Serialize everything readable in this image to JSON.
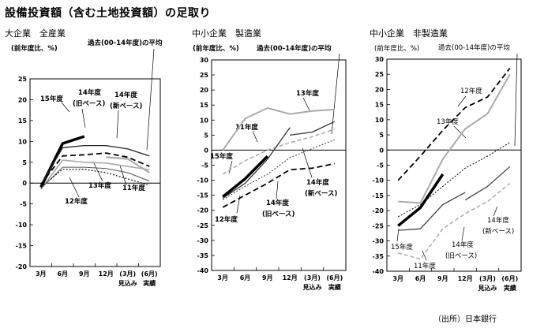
{
  "main_title": "設備投資額（含む土地投資額）の足取り",
  "source": "（出所）日本銀行",
  "chart_data": [
    {
      "type": "line",
      "title": "大企業　全産業",
      "ylabel": "(前年度比、%)",
      "ylim": [
        -20,
        25
      ],
      "yticks": [
        -20,
        -15,
        -10,
        -5,
        0,
        5,
        10,
        15,
        20,
        25
      ],
      "categories": [
        "3月",
        "6月",
        "9月",
        "12月",
        "(3月)",
        "(6月)"
      ],
      "sublabels": [
        "",
        "",
        "",
        "",
        "見込み",
        "実績"
      ],
      "series": [
        {
          "name": "15年度",
          "color": "#000000",
          "width": 3.5,
          "dash": "",
          "values": [
            -1,
            9.5,
            11.2,
            null,
            null,
            null
          ]
        },
        {
          "name": "14年度(旧ベース)",
          "color": "#222222",
          "width": 1.3,
          "dash": "",
          "values": [
            -0.5,
            8.5,
            9.0,
            9.0,
            8.2,
            6.5
          ]
        },
        {
          "name": "14年度(新ベース)",
          "color": "#aaaaaa",
          "width": 2.2,
          "dash": "",
          "values": [
            null,
            null,
            null,
            6.2,
            5.8,
            2.5
          ]
        },
        {
          "name": "12年度",
          "color": "#000000",
          "width": 1.8,
          "dash": "7,4",
          "values": [
            -0.3,
            6.5,
            6.8,
            7.2,
            6.2,
            4.0
          ]
        },
        {
          "name": "13年度",
          "color": "#aaaaaa",
          "width": 1.6,
          "dash": "",
          "values": [
            -1.5,
            5.5,
            5.0,
            4.8,
            4.0,
            3.2
          ]
        },
        {
          "name": "11年度",
          "color": "#000000",
          "width": 1.1,
          "dash": "2,2",
          "values": [
            -1.0,
            3.3,
            3.3,
            2.5,
            1.0,
            -0.5
          ]
        },
        {
          "name": "過去(00-14年度)の平均",
          "color": "#555555",
          "width": 1.0,
          "dash": "",
          "values": [
            -1.3,
            3.8,
            3.8,
            3.5,
            2.5,
            0.5
          ]
        }
      ],
      "annotations": [
        "15年度",
        "14年度",
        "(旧ベース)",
        "14年度",
        "(新ベース)",
        "12年度",
        "13年度",
        "11年度",
        "過去(00-14年度)の平均"
      ]
    },
    {
      "type": "line",
      "title": "中小企業　製造業",
      "ylabel": "(前年度比、%)",
      "ylim": [
        -40,
        30
      ],
      "yticks": [
        -40,
        -35,
        -30,
        -25,
        -20,
        -15,
        -10,
        -5,
        0,
        5,
        10,
        15,
        20,
        25,
        30
      ],
      "categories": [
        "3月",
        "6月",
        "9月",
        "12月",
        "(3月)",
        "(6月)"
      ],
      "sublabels": [
        "",
        "",
        "",
        "",
        "見込み",
        "実績"
      ],
      "series": [
        {
          "name": "13年度",
          "color": "#aaaaaa",
          "width": 2.0,
          "dash": "",
          "values": [
            0,
            10.5,
            14.0,
            12.0,
            13.0,
            13.5
          ]
        },
        {
          "name": "11年度",
          "color": "#aaaaaa",
          "width": 1.5,
          "dash": "5,3",
          "values": [
            -8,
            -3.5,
            0,
            2.5,
            4.5,
            7.0
          ]
        },
        {
          "name": "14年度(新ベース)",
          "color": "#333333",
          "width": 1.3,
          "dash": "",
          "values": [
            null,
            null,
            null,
            5.0,
            6.0,
            9.5
          ]
        },
        {
          "name": "15年度",
          "color": "#000000",
          "width": 3.5,
          "dash": "",
          "values": [
            -15.5,
            -9.5,
            -2.0,
            null,
            null,
            null
          ]
        },
        {
          "name": "14年度(旧ベース)",
          "color": "#333333",
          "width": 1.3,
          "dash": "",
          "values": [
            -16.0,
            -11.0,
            -3.0,
            7.5,
            null,
            null
          ]
        },
        {
          "name": "過去(00-14年度)の平均",
          "color": "#333333",
          "width": 1.0,
          "dash": "2,2",
          "values": [
            -16.5,
            -12.0,
            -8.0,
            -2.5,
            0.5,
            3.5
          ]
        },
        {
          "name": "12年度",
          "color": "#000000",
          "width": 1.8,
          "dash": "7,4",
          "values": [
            -19.0,
            -15.0,
            -11.0,
            -6.5,
            -6.0,
            -4.5
          ]
        }
      ],
      "annotations": [
        "(前年度比、%)",
        "過去(00-14年度)の平均",
        "13年度",
        "11年度",
        "15年度",
        "12年度",
        "14年度",
        "(旧ベース)",
        "14年度",
        "(新ベース)"
      ]
    },
    {
      "type": "line",
      "title": "中小企業　非製造業",
      "ylabel": "(前年度比、%)",
      "ylim": [
        -40,
        30
      ],
      "yticks": [
        -40,
        -35,
        -30,
        -25,
        -20,
        -15,
        -10,
        -5,
        0,
        5,
        10,
        15,
        20,
        25,
        30
      ],
      "categories": [
        "3月",
        "6月",
        "9月",
        "12月",
        "(3月)",
        "(6月)"
      ],
      "sublabels": [
        "",
        "",
        "",
        "",
        "見込み",
        "実績"
      ],
      "series": [
        {
          "name": "12年度",
          "color": "#000000",
          "width": 1.8,
          "dash": "7,4",
          "values": [
            -10,
            -2.0,
            6.5,
            14.0,
            17.5,
            27.0
          ]
        },
        {
          "name": "13年度",
          "color": "#aaaaaa",
          "width": 2.0,
          "dash": "",
          "values": [
            -17.0,
            -17.5,
            -3.0,
            7.0,
            12.0,
            25.0
          ]
        },
        {
          "name": "過去(00-14年度)の平均",
          "color": "#000000",
          "width": 1.0,
          "dash": "2,2",
          "values": [
            -22.0,
            -18.0,
            -12.0,
            -6.0,
            -2.0,
            2.5
          ]
        },
        {
          "name": "15年度",
          "color": "#000000",
          "width": 3.5,
          "dash": "",
          "values": [
            -25.0,
            -19.0,
            -8.0,
            null,
            null,
            null
          ]
        },
        {
          "name": "14年度(旧ベース)",
          "color": "#444444",
          "width": 1.3,
          "dash": "",
          "values": [
            -26.5,
            -26.0,
            -18.0,
            -14.0,
            null,
            null
          ]
        },
        {
          "name": "14年度(新ベース)",
          "color": "#444444",
          "width": 1.3,
          "dash": "",
          "values": [
            null,
            null,
            null,
            -16.5,
            -12.0,
            -5.5
          ]
        },
        {
          "name": "11年度",
          "color": "#aaaaaa",
          "width": 1.5,
          "dash": "5,3",
          "values": [
            -34.0,
            -36.0,
            -26.0,
            -21.0,
            -17.0,
            -11.0
          ]
        }
      ],
      "annotations": [
        "過去(00-14年度)の平均",
        "12年度",
        "13年度",
        "15年度",
        "11年度",
        "14年度",
        "(旧ベース)",
        "14年度",
        "(新ベース)"
      ]
    }
  ]
}
